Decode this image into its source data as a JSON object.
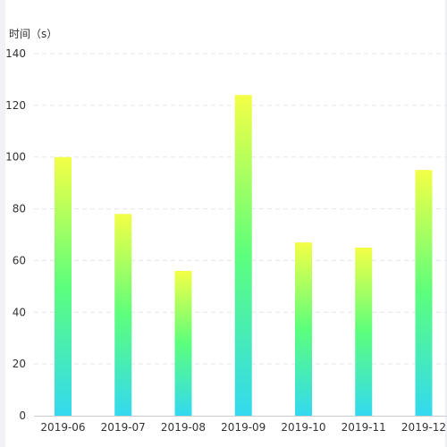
{
  "chart_data": {
    "type": "bar",
    "categories": [
      "2019-06",
      "2019-07",
      "2019-08",
      "2019-09",
      "2019-10",
      "2019-11",
      "2019-12"
    ],
    "values": [
      100,
      78,
      56,
      124,
      67,
      65,
      95
    ],
    "ylabel": "时间（s）",
    "xlabel": "",
    "title": "",
    "ylim": [
      0,
      140
    ],
    "yticks": [
      0,
      20,
      40,
      60,
      80,
      100,
      120,
      140
    ],
    "grid": true,
    "legend": "none",
    "colors": {
      "bar_top": "#f4ff45",
      "bar_mid": "#5cff7c",
      "bar_bottom": "#33d9f0",
      "grid": "#e6e6e6",
      "axis": "#cccccc",
      "text": "#333333"
    }
  }
}
